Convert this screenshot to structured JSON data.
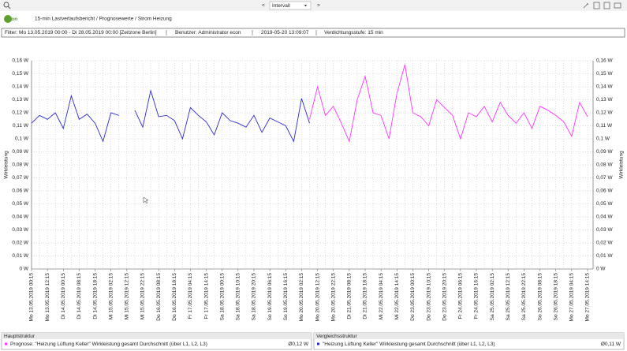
{
  "toolbar": {
    "dropdown": "Intervall"
  },
  "header": {
    "logo": "econ",
    "title": "15-min Lastverlaufsbericht / Prognosewerte / Strom Heizung"
  },
  "filter": [
    "Filter: Mo 13.05.2019 00:00 - Di 28.05.2019 00:00 [Zeitzone Berlin]",
    "Benutzer: Administrator econ",
    "2019-05-20 13:09:07",
    "Verdichtungsstufe: 15 min"
  ],
  "chart_data": {
    "type": "line",
    "ylabel": "Wirkleistung",
    "ylim": [
      0,
      0.16
    ],
    "yticks": [
      {
        "value": 0,
        "label": "0 W"
      },
      {
        "value": 0.01,
        "label": "0,01 W"
      },
      {
        "value": 0.02,
        "label": "0,02 W"
      },
      {
        "value": 0.03,
        "label": "0,03 W"
      },
      {
        "value": 0.04,
        "label": "0,04 W"
      },
      {
        "value": 0.05,
        "label": "0,05 W"
      },
      {
        "value": 0.06,
        "label": "0,06 W"
      },
      {
        "value": 0.07,
        "label": "0,07 W"
      },
      {
        "value": 0.08,
        "label": "0,08 W"
      },
      {
        "value": 0.09,
        "label": "0,09 W"
      },
      {
        "value": 0.1,
        "label": "0,1 W"
      },
      {
        "value": 0.11,
        "label": "0,11 W"
      },
      {
        "value": 0.12,
        "label": "0,12 W"
      },
      {
        "value": 0.13,
        "label": "0,13 W"
      },
      {
        "value": 0.14,
        "label": "0,14 W"
      },
      {
        "value": 0.15,
        "label": "0,15 W"
      },
      {
        "value": 0.16,
        "label": "0,16 W"
      }
    ],
    "grid": true,
    "categories": [
      "Mo 13.05.2019 00:15",
      null,
      "Mo 13.05.2019 12:15",
      null,
      "Di 14.05.2019 00:15",
      null,
      "Di 14.05.2019 08:15",
      null,
      "Di 14.05.2019 18:15",
      null,
      "Mi 15.05.2019 02:15",
      null,
      "Mi 15.05.2019 12:15",
      null,
      "Mi 15.05.2019 22:15",
      null,
      "Do 16.05.2019 08:15",
      null,
      "Do 16.05.2019 18:15",
      null,
      "Fr 17.05.2019 04:15",
      null,
      "Fr 17.05.2019 14:15",
      null,
      "Sa 18.05.2019 00:15",
      null,
      "Sa 18.05.2019 10:15",
      null,
      "Sa 18.05.2019 20:15",
      null,
      "So 19.05.2019 06:15",
      null,
      "So 19.05.2019 16:15",
      null,
      "Mo 20.05.2019 02:15",
      null,
      "Mo 20.05.2019 12:15",
      null,
      "Mo 20.05.2019 22:15",
      null,
      "Di 21.05.2019 08:15",
      null,
      "Di 21.05.2019 18:15",
      null,
      "Mi 22.05.2019 04:15",
      null,
      "Mi 22.05.2019 14:15",
      null,
      "Do 23.05.2019 00:15",
      null,
      "Do 23.05.2019 10:15",
      null,
      "Do 23.05.2019 20:15",
      null,
      "Fr 24.05.2019 06:15",
      null,
      "Fr 24.05.2019 16:15",
      null,
      "Sa 25.05.2019 02:15",
      null,
      "Sa 25.05.2019 12:15",
      null,
      "Sa 25.05.2019 22:15",
      null,
      "So 26.05.2019 08:15",
      null,
      "So 26.05.2019 18:15",
      null,
      "Mo 27.05.2019 04:15",
      null,
      "Mo 27.05.2019 14:15"
    ],
    "series": [
      {
        "name": "Prognose: \"Heizung Lüftung Keller\" Wirkleistung gesamt Durchschnitt (über L1, L2, L3)",
        "color": "#ff33ff",
        "values": [
          null,
          null,
          null,
          null,
          null,
          null,
          null,
          null,
          null,
          null,
          null,
          null,
          null,
          null,
          null,
          null,
          null,
          null,
          null,
          null,
          null,
          null,
          null,
          null,
          null,
          null,
          null,
          null,
          null,
          null,
          null,
          null,
          null,
          null,
          null,
          0.115,
          0.14,
          0.118,
          0.125,
          0.112,
          0.098,
          0.13,
          0.148,
          0.12,
          0.118,
          0.1,
          0.135,
          0.157,
          0.12,
          0.117,
          0.11,
          0.13,
          0.124,
          0.118,
          0.1,
          0.12,
          0.117,
          0.125,
          0.113,
          0.128,
          0.118,
          0.112,
          0.12,
          0.108,
          0.125,
          0.122,
          0.118,
          0.113,
          0.102,
          0.128,
          0.117
        ]
      },
      {
        "name": "\"Heizung Lüftung Keller\" Wirkleistung gesamt Durchschnitt (über L1, L2, L3)",
        "color": "#2a2ad0",
        "values": [
          0.112,
          0.118,
          0.115,
          0.12,
          0.108,
          0.133,
          0.115,
          0.119,
          0.112,
          0.098,
          0.12,
          0.118,
          null,
          0.122,
          0.109,
          0.137,
          0.117,
          0.118,
          0.114,
          0.1,
          0.124,
          0.118,
          0.113,
          0.103,
          0.12,
          0.114,
          0.112,
          0.109,
          0.118,
          0.105,
          0.116,
          0.113,
          0.11,
          0.098,
          0.131,
          0.112,
          null,
          null,
          null,
          null,
          null,
          null,
          null,
          null,
          null,
          null,
          null,
          null,
          null,
          null,
          null,
          null,
          null,
          null,
          null,
          null,
          null,
          null,
          null,
          null,
          null,
          null,
          null,
          null,
          null,
          null,
          null,
          null,
          null,
          null,
          null
        ]
      }
    ],
    "legend_panels": [
      {
        "title": "Hauptstruktur",
        "average": "Ø0,12 W"
      },
      {
        "title": "Vergleichsstruktur",
        "average": "Ø0,11 W"
      }
    ]
  }
}
